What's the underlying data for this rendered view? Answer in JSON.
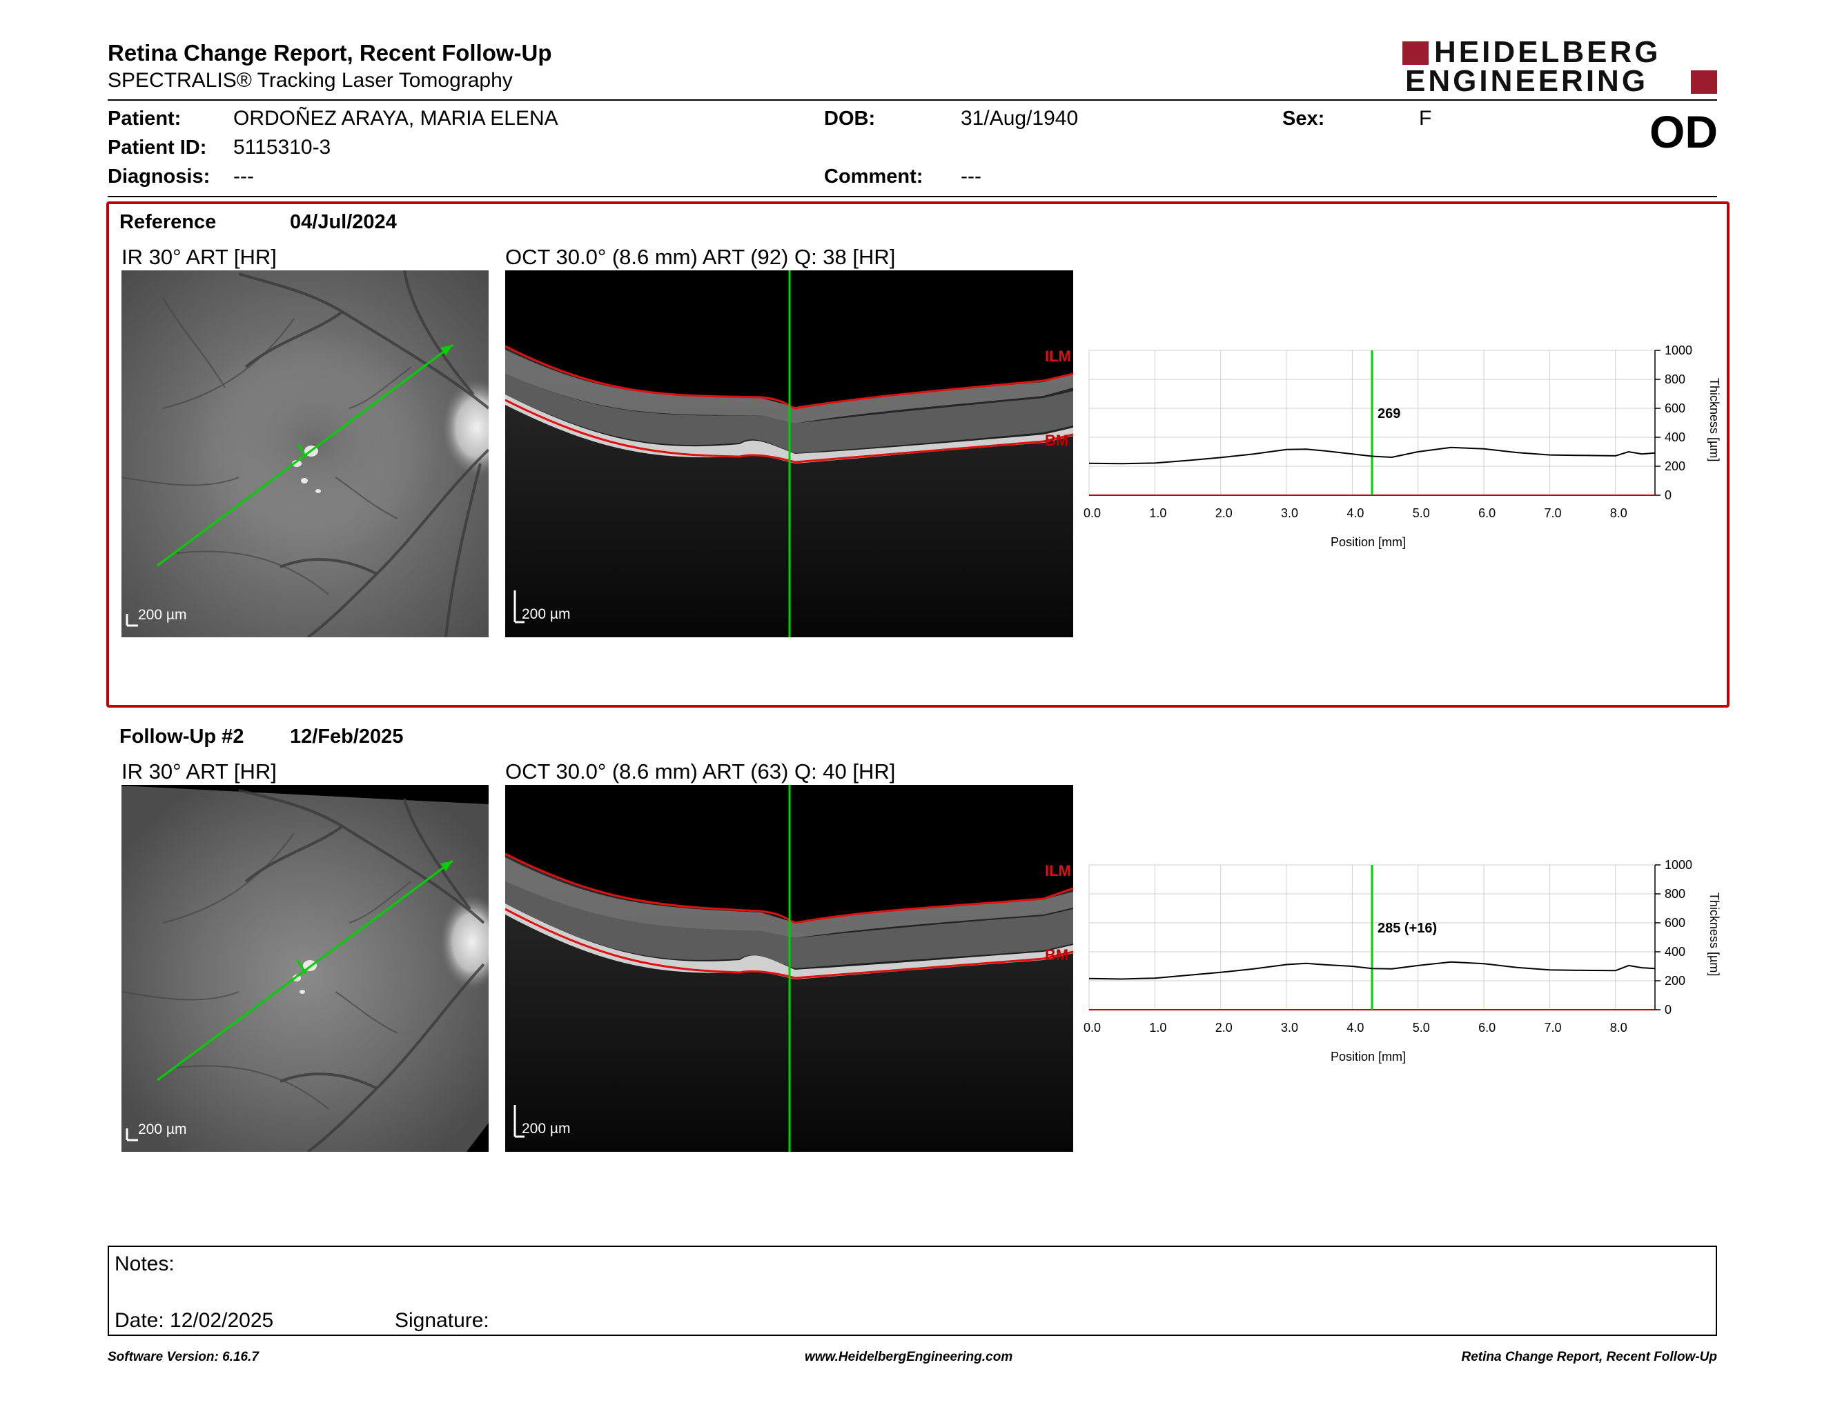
{
  "header": {
    "title": "Retina Change Report, Recent Follow-Up",
    "subtitle": "SPECTRALIS® Tracking Laser Tomography",
    "logo_line1": "HEIDELBERG",
    "logo_line2": "ENGINEERING",
    "eye": "OD"
  },
  "patient": {
    "patient_label": "Patient:",
    "patient_value": "ORDOÑEZ ARAYA, MARIA ELENA",
    "id_label": "Patient ID:",
    "id_value": "5115310-3",
    "diagnosis_label": "Diagnosis:",
    "diagnosis_value": "---",
    "dob_label": "DOB:",
    "dob_value": "31/Aug/1940",
    "comment_label": "Comment:",
    "comment_value": "---",
    "sex_label": "Sex:",
    "sex_value": "F"
  },
  "reference": {
    "title": "Reference",
    "date": "04/Jul/2024",
    "ir_label": "IR 30° ART [HR]",
    "oct_label": "OCT 30.0° (8.6 mm) ART (92) Q: 38 [HR]",
    "ir_scale": "200 µm",
    "oct_scale": "200 µm",
    "ilm_label": "ILM",
    "bm_label": "BM"
  },
  "followup": {
    "title": "Follow-Up #2",
    "date": "12/Feb/2025",
    "ir_label": "IR 30° ART [HR]",
    "oct_label": "OCT 30.0° (8.6 mm) ART (63) Q: 40 [HR]",
    "ir_scale": "200 µm",
    "oct_scale": "200 µm",
    "ilm_label": "ILM",
    "bm_label": "BM"
  },
  "chart_data": [
    {
      "type": "line",
      "name": "reference-thickness",
      "xlabel": "Position [mm]",
      "ylabel": "Thickness [µm]",
      "xlim": [
        0,
        8.6
      ],
      "ylim": [
        0,
        1000
      ],
      "xticks": [
        "0.0",
        "1.0",
        "2.0",
        "3.0",
        "4.0",
        "5.0",
        "6.0",
        "7.0",
        "8.0"
      ],
      "yticks": [
        "0",
        "200",
        "400",
        "600",
        "800",
        "1000"
      ],
      "marker_x": 4.3,
      "marker_label": "269",
      "x": [
        0,
        0.5,
        1.0,
        1.5,
        2.0,
        2.5,
        3.0,
        3.3,
        3.6,
        4.0,
        4.3,
        4.6,
        5.0,
        5.5,
        6.0,
        6.5,
        7.0,
        7.5,
        8.0,
        8.2,
        8.4,
        8.6
      ],
      "y": [
        220,
        218,
        222,
        240,
        260,
        285,
        315,
        318,
        305,
        285,
        269,
        262,
        300,
        330,
        320,
        295,
        278,
        275,
        272,
        300,
        285,
        292
      ]
    },
    {
      "type": "line",
      "name": "followup-thickness",
      "xlabel": "Position [mm]",
      "ylabel": "Thickness [µm]",
      "xlim": [
        0,
        8.6
      ],
      "ylim": [
        0,
        1000
      ],
      "xticks": [
        "0.0",
        "1.0",
        "2.0",
        "3.0",
        "4.0",
        "5.0",
        "6.0",
        "7.0",
        "8.0"
      ],
      "yticks": [
        "0",
        "200",
        "400",
        "600",
        "800",
        "1000"
      ],
      "marker_x": 4.3,
      "marker_label": "285 (+16)",
      "x": [
        0,
        0.5,
        1.0,
        1.5,
        2.0,
        2.5,
        3.0,
        3.3,
        3.6,
        4.0,
        4.3,
        4.6,
        5.0,
        5.5,
        6.0,
        6.5,
        7.0,
        7.5,
        8.0,
        8.2,
        8.4,
        8.6
      ],
      "y": [
        215,
        212,
        218,
        238,
        258,
        282,
        312,
        320,
        310,
        300,
        285,
        282,
        305,
        330,
        318,
        292,
        275,
        272,
        270,
        305,
        290,
        285
      ]
    }
  ],
  "notes": {
    "notes_label": "Notes:",
    "date_label": "Date: 12/02/2025",
    "signature_label": "Signature:"
  },
  "footer": {
    "software": "Software Version: 6.16.7",
    "website": "www.HeidelbergEngineering.com",
    "report_name": "Retina Change Report, Recent Follow-Up"
  },
  "colors": {
    "accent": "#c0000b",
    "logo": "#9b1c2c",
    "scan_line": "#00d100",
    "boundary": "#e01010"
  }
}
